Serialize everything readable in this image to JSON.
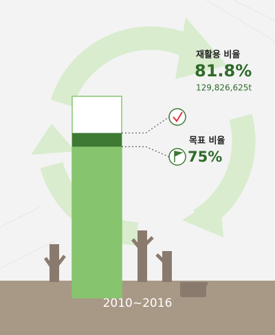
{
  "chart_data": {
    "type": "bar",
    "categories": [
      "2010~2016"
    ],
    "series": [
      {
        "name": "재활용 비율",
        "values": [
          81.8
        ],
        "value_labels": [
          "81.8%"
        ],
        "color": "#3e7a34"
      },
      {
        "name": "목표 비율",
        "values": [
          75
        ],
        "value_labels": [
          "75%"
        ],
        "color": "#86c46e"
      }
    ],
    "annotation": "129,826,625t",
    "ylim": [
      0,
      100
    ]
  }
}
